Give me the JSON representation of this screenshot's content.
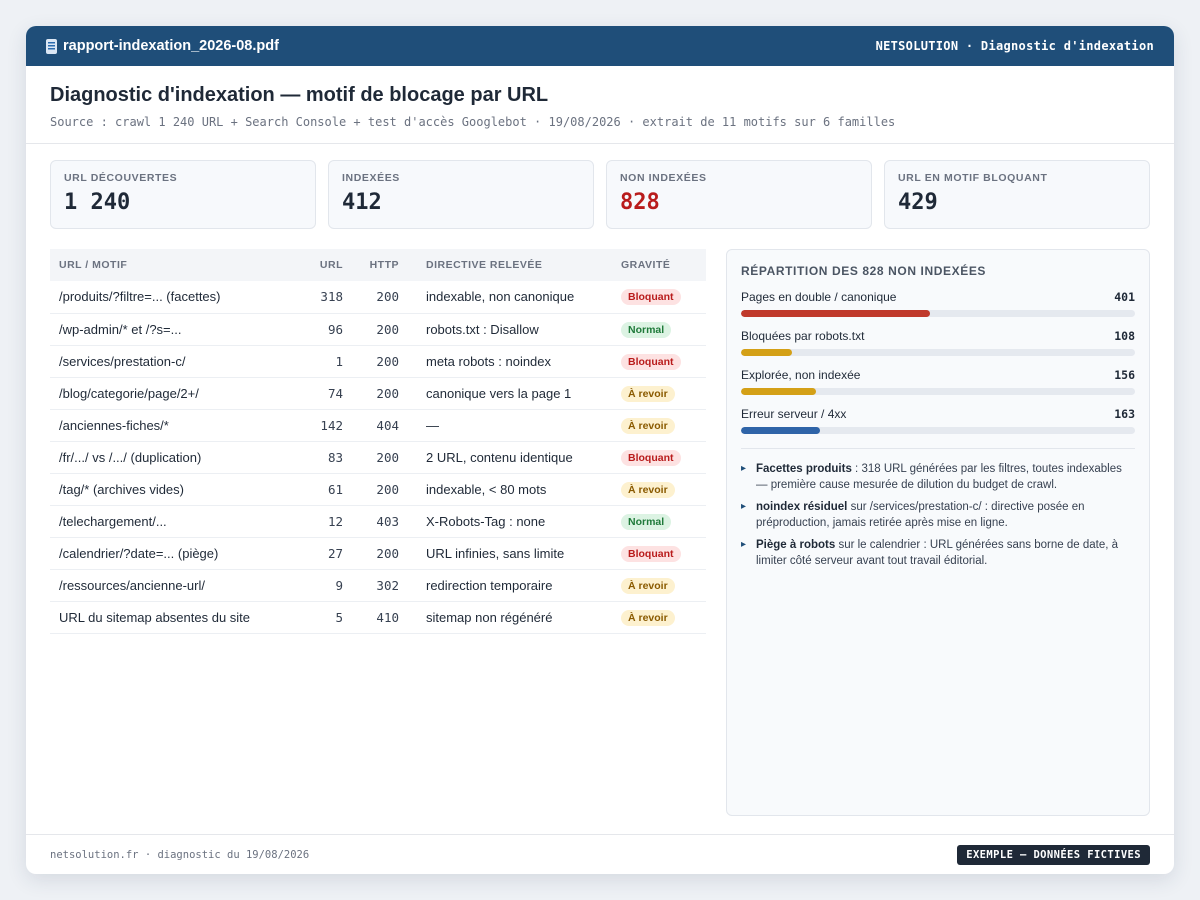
{
  "titlebar": {
    "filename": "rapport-indexation_2026-08.pdf",
    "brand": "NETSOLUTION · Diagnostic d'indexation",
    "icon": "document-icon"
  },
  "header": {
    "title": "Diagnostic d'indexation — motif de blocage par URL",
    "source": "Source : crawl 1 240 URL + Search Console + test d'accès Googlebot · 19/08/2026 · extrait de 11 motifs sur 6 familles"
  },
  "kpis": [
    {
      "label": "URL DÉCOUVERTES",
      "value": "1 240"
    },
    {
      "label": "INDEXÉES",
      "value": "412"
    },
    {
      "label": "NON INDEXÉES",
      "value": "828",
      "color": "#b91c1c"
    },
    {
      "label": "URL EN MOTIF BLOQUANT",
      "value": "429"
    }
  ],
  "table": {
    "headers": {
      "url": "URL / MOTIF",
      "count": "URL",
      "http": "HTTP",
      "directive": "DIRECTIVE RELEVÉE",
      "severity": "GRAVITÉ"
    },
    "rows": [
      {
        "url": "/produits/?filtre=... (facettes)",
        "count": "318",
        "http": "200",
        "directive": "indexable, non canonique",
        "severity": "Bloquant",
        "level": "bloquant"
      },
      {
        "url": "/wp-admin/* et /?s=...",
        "count": "96",
        "http": "200",
        "directive": "robots.txt : Disallow",
        "severity": "Normal",
        "level": "normal"
      },
      {
        "url": "/services/prestation-c/",
        "count": "1",
        "http": "200",
        "directive": "meta robots : noindex",
        "severity": "Bloquant",
        "level": "bloquant"
      },
      {
        "url": "/blog/categorie/page/2+/",
        "count": "74",
        "http": "200",
        "directive": "canonique vers la page 1",
        "severity": "À revoir",
        "level": "revoir"
      },
      {
        "url": "/anciennes-fiches/*",
        "count": "142",
        "http": "404",
        "directive": "—",
        "severity": "À revoir",
        "level": "revoir"
      },
      {
        "url": "/fr/.../ vs /.../ (duplication)",
        "count": "83",
        "http": "200",
        "directive": "2 URL, contenu identique",
        "severity": "Bloquant",
        "level": "bloquant"
      },
      {
        "url": "/tag/* (archives vides)",
        "count": "61",
        "http": "200",
        "directive": "indexable, < 80 mots",
        "severity": "À revoir",
        "level": "revoir"
      },
      {
        "url": "/telechargement/...",
        "count": "12",
        "http": "403",
        "directive": "X-Robots-Tag : none",
        "severity": "Normal",
        "level": "normal"
      },
      {
        "url": "/calendrier/?date=... (piège)",
        "count": "27",
        "http": "200",
        "directive": "URL infinies, sans limite",
        "severity": "Bloquant",
        "level": "bloquant"
      },
      {
        "url": "/ressources/ancienne-url/",
        "count": "9",
        "http": "302",
        "directive": "redirection temporaire",
        "severity": "À revoir",
        "level": "revoir"
      },
      {
        "url": "URL du sitemap absentes du site",
        "count": "5",
        "http": "410",
        "directive": "sitemap non régénéré",
        "severity": "À revoir",
        "level": "revoir"
      }
    ]
  },
  "panel": {
    "title": "RÉPARTITION DES 828 NON INDEXÉES",
    "bars": [
      {
        "label": "Pages en double / canonique",
        "value": "401",
        "fraction": 0.48,
        "color": "#c0392b"
      },
      {
        "label": "Bloquées par robots.txt",
        "value": "108",
        "fraction": 0.13,
        "color": "#d4a017"
      },
      {
        "label": "Explorée, non indexée",
        "value": "156",
        "fraction": 0.19,
        "color": "#d4a017"
      },
      {
        "label": "Erreur serveur / 4xx",
        "value": "163",
        "fraction": 0.2,
        "color": "#2f64a8"
      }
    ],
    "notes": [
      {
        "bold": "Facettes produits",
        "text": " : 318 URL générées par les filtres, toutes indexables — première cause mesurée de dilution du budget de crawl."
      },
      {
        "bold": "noindex résiduel",
        "text": " sur /services/prestation-c/ : directive posée en préproduction, jamais retirée après mise en ligne."
      },
      {
        "bold": "Piège à robots",
        "text": " sur le calendrier : URL générées sans borne de date, à limiter côté serveur avant tout travail éditorial."
      }
    ]
  },
  "footer": {
    "text": "netsolution.fr · diagnostic du 19/08/2026",
    "tag": "EXEMPLE — DONNÉES FICTIVES"
  }
}
